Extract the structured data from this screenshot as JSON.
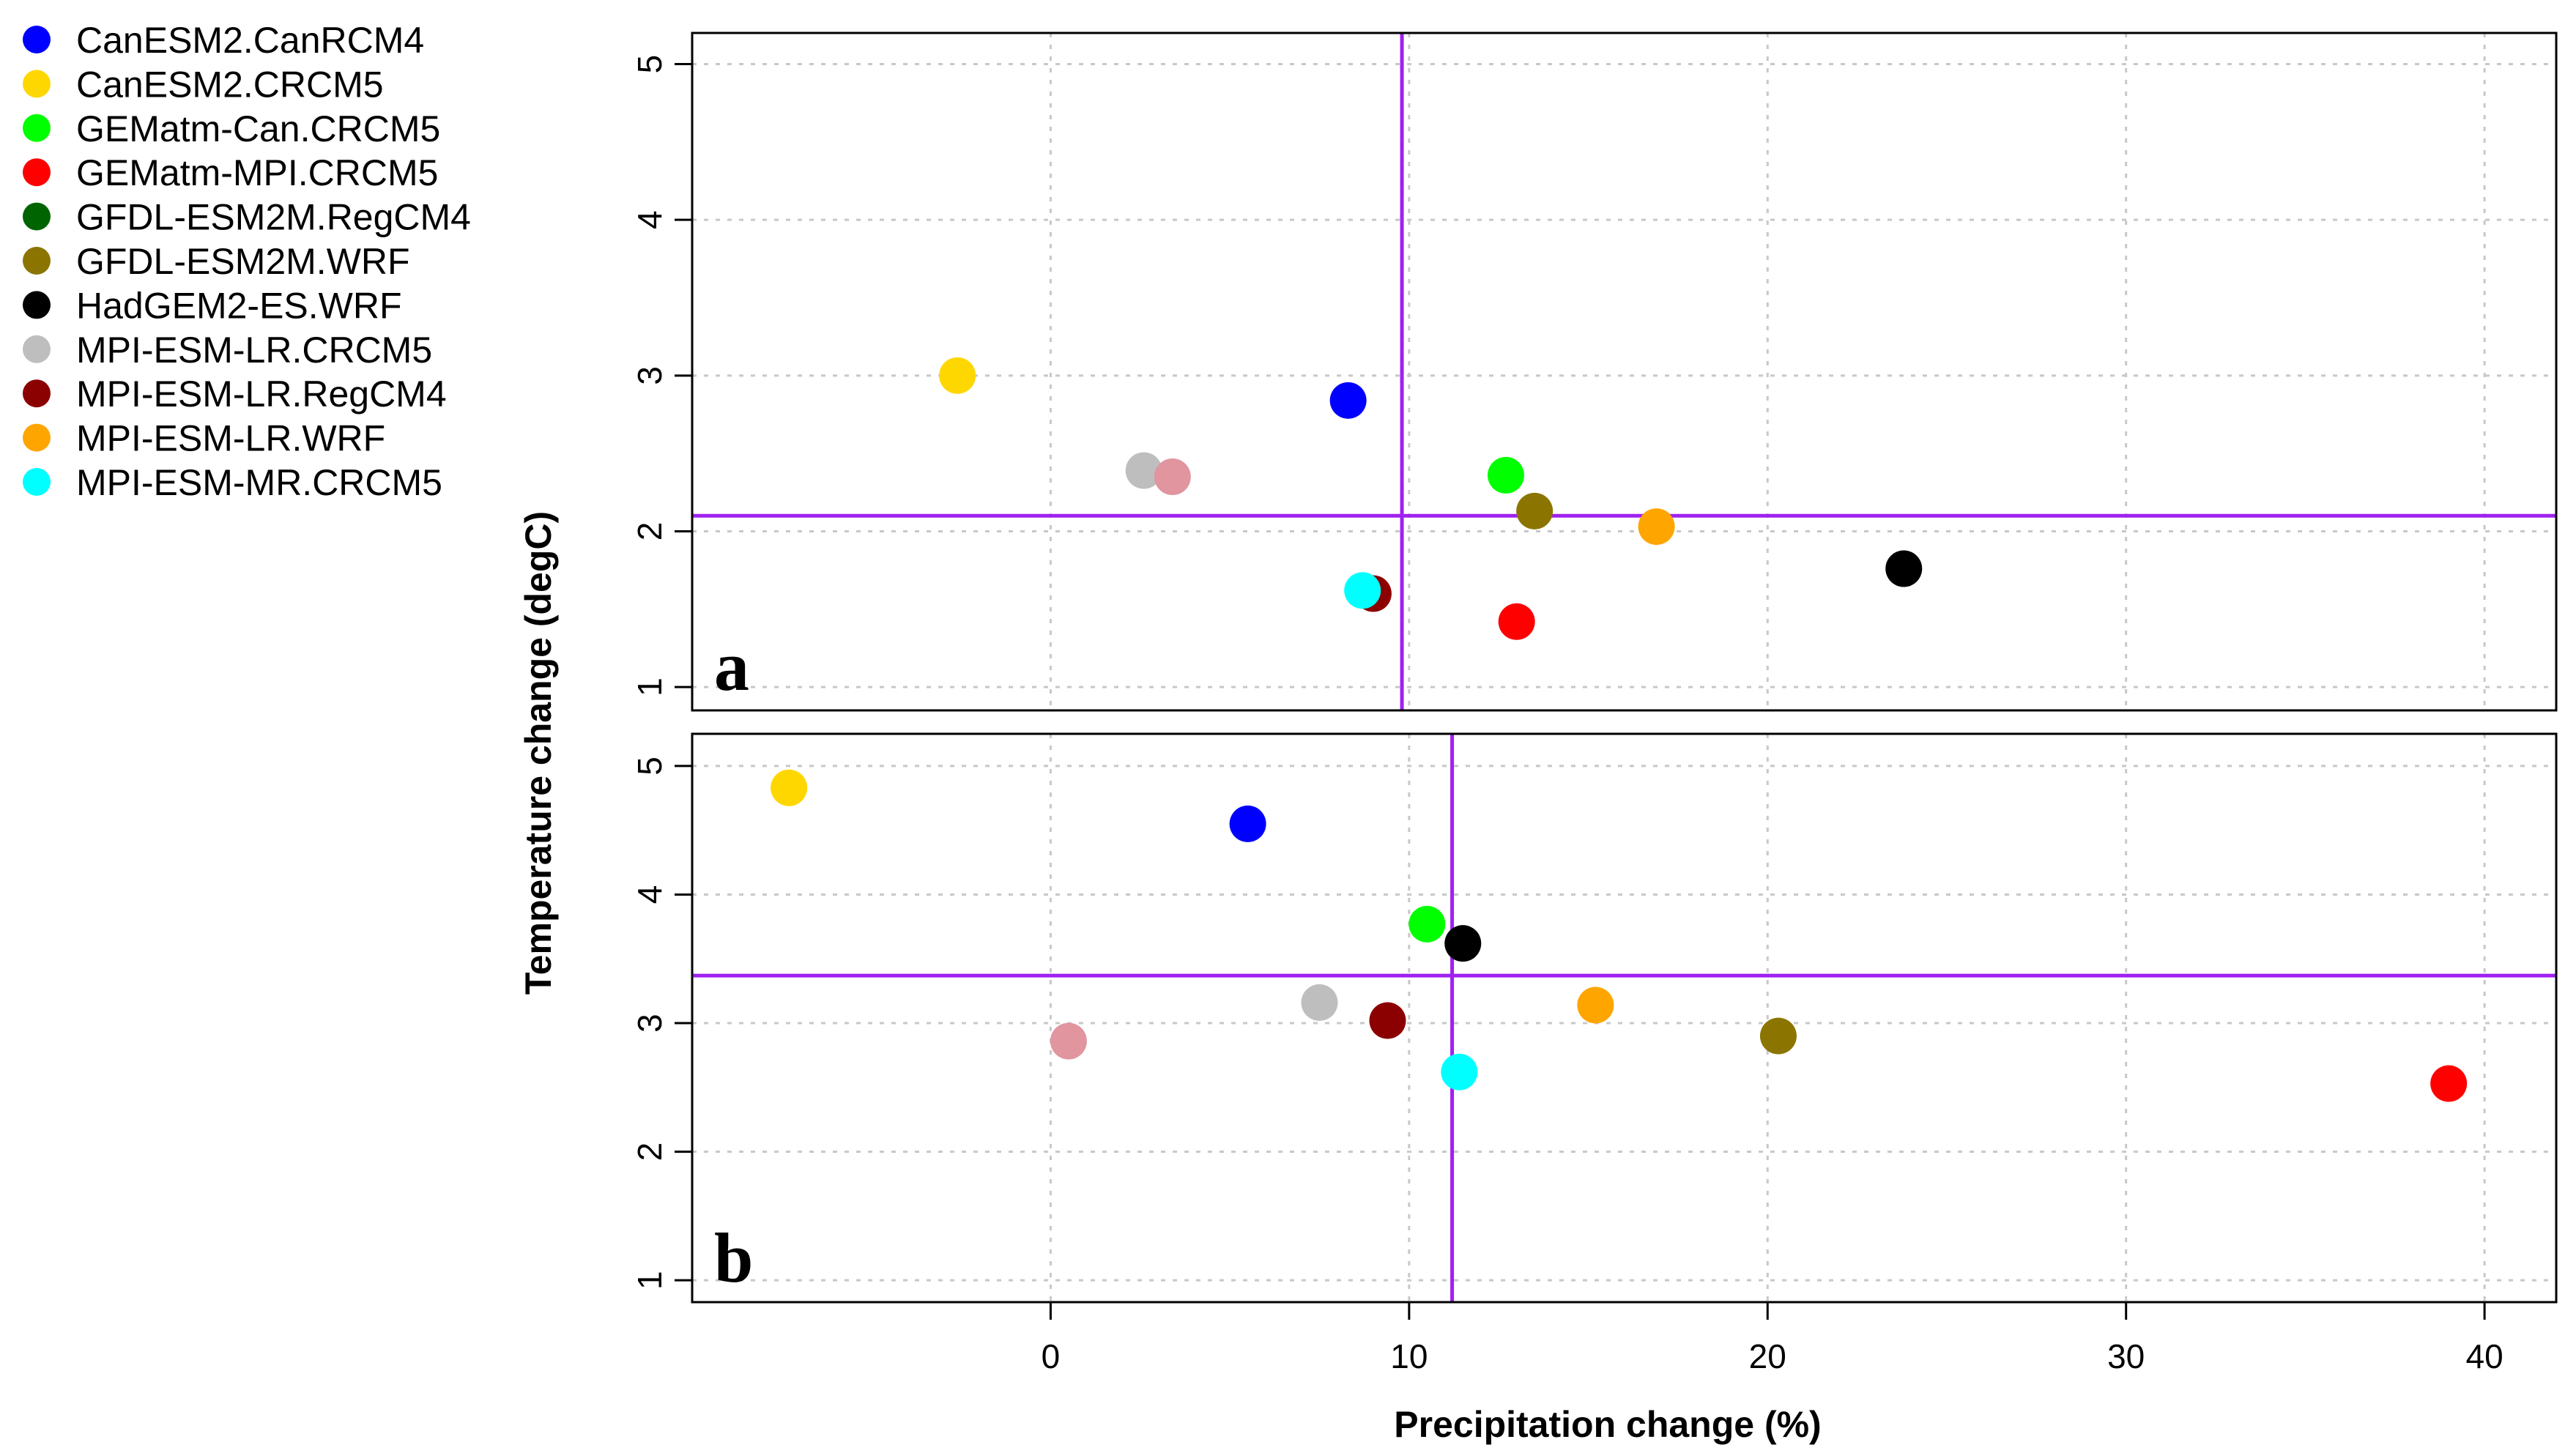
{
  "chart_data": {
    "type": "scatter",
    "xlabel": "Precipitation change (%)",
    "ylabel": "Temperature change (degC)",
    "xlim": [
      -10,
      42
    ],
    "x_ticks": [
      "0",
      "10",
      "20",
      "30",
      "40"
    ],
    "models": [
      {
        "name": "CanESM2.CanRCM4",
        "color": "#0000ff"
      },
      {
        "name": "CanESM2.CRCM5",
        "color": "#ffd700"
      },
      {
        "name": "GEMatm-Can.CRCM5",
        "color": "#00ff00"
      },
      {
        "name": "GEMatm-MPI.CRCM5",
        "color": "#ff0000"
      },
      {
        "name": "GFDL-ESM2M.RegCM4",
        "color": "#006400"
      },
      {
        "name": "GFDL-ESM2M.WRF",
        "color": "#8b7500"
      },
      {
        "name": "HadGEM2-ES.WRF",
        "color": "#000000"
      },
      {
        "name": "MPI-ESM-LR.CRCM5",
        "color": "#bebebe"
      },
      {
        "name": "MPI-ESM-LR.RegCM4",
        "color": "#8b0000"
      },
      {
        "name": "MPI-ESM-LR.WRF",
        "color": "#ffa500"
      },
      {
        "name": "MPI-ESM-MR.CRCM5",
        "color": "#00ffff"
      }
    ],
    "extra_point_color": "#e0959f",
    "vline_color": "#a020f0",
    "panels": [
      {
        "letter": "a",
        "ylim": [
          0.85,
          5.2
        ],
        "y_ticks": [
          "1",
          "2",
          "3",
          "4",
          "5"
        ],
        "vline_x": 9.8,
        "hline_y": 2.1,
        "points": [
          {
            "model": "CanESM2.CanRCM4",
            "x": 8.3,
            "y": 2.84
          },
          {
            "model": "CanESM2.CRCM5",
            "x": -2.6,
            "y": 3.0
          },
          {
            "model": "GEMatm-Can.CRCM5",
            "x": 12.7,
            "y": 2.36
          },
          {
            "model": "GEMatm-MPI.CRCM5",
            "x": 13.0,
            "y": 1.42
          },
          {
            "model": "GFDL-ESM2M.WRF",
            "x": 13.5,
            "y": 2.13
          },
          {
            "model": "HadGEM2-ES.WRF",
            "x": 23.8,
            "y": 1.76
          },
          {
            "model": "MPI-ESM-LR.CRCM5",
            "x": 2.6,
            "y": 2.39
          },
          {
            "model": "MPI-ESM-LR.RegCM4",
            "x": 9.0,
            "y": 1.6
          },
          {
            "model": "MPI-ESM-LR.WRF",
            "x": 16.9,
            "y": 2.03
          },
          {
            "model": "MPI-ESM-MR.CRCM5",
            "x": 8.7,
            "y": 1.62
          },
          {
            "model": "",
            "x": 3.4,
            "y": 2.35
          }
        ]
      },
      {
        "letter": "b",
        "ylim": [
          0.83,
          5.25
        ],
        "y_ticks": [
          "1",
          "2",
          "3",
          "4",
          "5"
        ],
        "vline_x": 11.2,
        "hline_y": 3.37,
        "points": [
          {
            "model": "CanESM2.CanRCM4",
            "x": 5.5,
            "y": 4.55
          },
          {
            "model": "CanESM2.CRCM5",
            "x": -7.3,
            "y": 4.83
          },
          {
            "model": "GEMatm-Can.CRCM5",
            "x": 10.5,
            "y": 3.77
          },
          {
            "model": "GEMatm-MPI.CRCM5",
            "x": 39.0,
            "y": 2.53
          },
          {
            "model": "GFDL-ESM2M.WRF",
            "x": 20.3,
            "y": 2.9
          },
          {
            "model": "HadGEM2-ES.WRF",
            "x": 11.5,
            "y": 3.62
          },
          {
            "model": "MPI-ESM-LR.CRCM5",
            "x": 7.5,
            "y": 3.16
          },
          {
            "model": "MPI-ESM-LR.RegCM4",
            "x": 9.4,
            "y": 3.02
          },
          {
            "model": "MPI-ESM-LR.WRF",
            "x": 15.2,
            "y": 3.14
          },
          {
            "model": "MPI-ESM-MR.CRCM5",
            "x": 11.4,
            "y": 2.62
          },
          {
            "model": "",
            "x": 0.5,
            "y": 2.86
          }
        ]
      }
    ]
  }
}
